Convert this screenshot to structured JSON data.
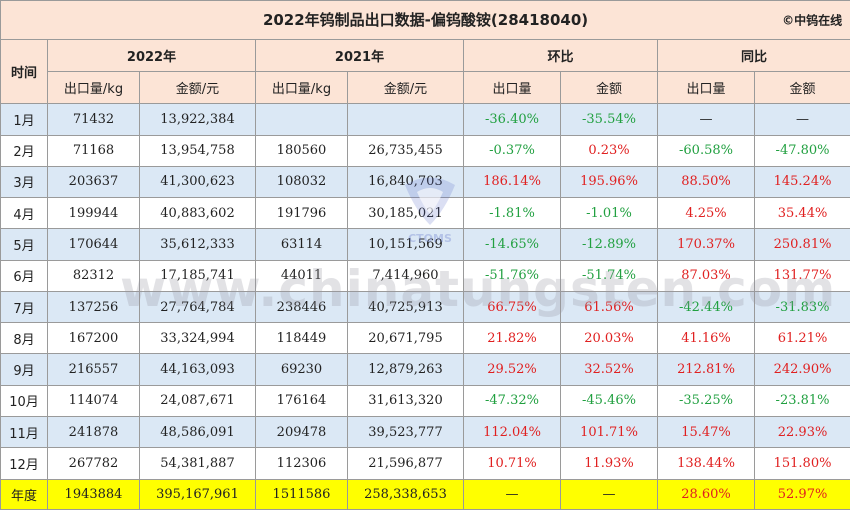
{
  "title": "2022年钨制品出口数据-偏钨酸铵(28418040)",
  "copyright": "©中钨在线",
  "watermark": "www.chinatungsten.com",
  "logo_text": "CTOMS",
  "headers": {
    "time": "时间",
    "year2022": "2022年",
    "year2021": "2021年",
    "mom": "环比",
    "yoy": "同比",
    "qty_kg": "出口量/kg",
    "amount_yuan": "金额/元",
    "qty": "出口量",
    "amount": "金额"
  },
  "rows": [
    {
      "month": "1月",
      "q22": "71432",
      "a22": "13,922,384",
      "q21": "",
      "a21": "",
      "mom_q": "-36.40%",
      "mom_a": "-35.54%",
      "yoy_q": "—",
      "yoy_a": "—"
    },
    {
      "month": "2月",
      "q22": "71168",
      "a22": "13,954,758",
      "q21": "180560",
      "a21": "26,735,455",
      "mom_q": "-0.37%",
      "mom_a": "0.23%",
      "yoy_q": "-60.58%",
      "yoy_a": "-47.80%"
    },
    {
      "month": "3月",
      "q22": "203637",
      "a22": "41,300,623",
      "q21": "108032",
      "a21": "16,840,703",
      "mom_q": "186.14%",
      "mom_a": "195.96%",
      "yoy_q": "88.50%",
      "yoy_a": "145.24%"
    },
    {
      "month": "4月",
      "q22": "199944",
      "a22": "40,883,602",
      "q21": "191796",
      "a21": "30,185,021",
      "mom_q": "-1.81%",
      "mom_a": "-1.01%",
      "yoy_q": "4.25%",
      "yoy_a": "35.44%"
    },
    {
      "month": "5月",
      "q22": "170644",
      "a22": "35,612,333",
      "q21": "63114",
      "a21": "10,151,569",
      "mom_q": "-14.65%",
      "mom_a": "-12.89%",
      "yoy_q": "170.37%",
      "yoy_a": "250.81%"
    },
    {
      "month": "6月",
      "q22": "82312",
      "a22": "17,185,741",
      "q21": "44011",
      "a21": "7,414,960",
      "mom_q": "-51.76%",
      "mom_a": "-51.74%",
      "yoy_q": "87.03%",
      "yoy_a": "131.77%"
    },
    {
      "month": "7月",
      "q22": "137256",
      "a22": "27,764,784",
      "q21": "238446",
      "a21": "40,725,913",
      "mom_q": "66.75%",
      "mom_a": "61.56%",
      "yoy_q": "-42.44%",
      "yoy_a": "-31.83%"
    },
    {
      "month": "8月",
      "q22": "167200",
      "a22": "33,324,994",
      "q21": "118449",
      "a21": "20,671,795",
      "mom_q": "21.82%",
      "mom_a": "20.03%",
      "yoy_q": "41.16%",
      "yoy_a": "61.21%"
    },
    {
      "month": "9月",
      "q22": "216557",
      "a22": "44,163,093",
      "q21": "69230",
      "a21": "12,879,263",
      "mom_q": "29.52%",
      "mom_a": "32.52%",
      "yoy_q": "212.81%",
      "yoy_a": "242.90%"
    },
    {
      "month": "10月",
      "q22": "114074",
      "a22": "24,087,671",
      "q21": "176164",
      "a21": "31,613,320",
      "mom_q": "-47.32%",
      "mom_a": "-45.46%",
      "yoy_q": "-35.25%",
      "yoy_a": "-23.81%"
    },
    {
      "month": "11月",
      "q22": "241878",
      "a22": "48,586,091",
      "q21": "209478",
      "a21": "39,523,777",
      "mom_q": "112.04%",
      "mom_a": "101.71%",
      "yoy_q": "15.47%",
      "yoy_a": "22.93%"
    },
    {
      "month": "12月",
      "q22": "267782",
      "a22": "54,381,887",
      "q21": "112306",
      "a21": "21,596,877",
      "mom_q": "10.71%",
      "mom_a": "11.93%",
      "yoy_q": "138.44%",
      "yoy_a": "151.80%"
    }
  ],
  "total": {
    "month": "年度",
    "q22": "1943884",
    "a22": "395,167,961",
    "q21": "1511586",
    "a21": "258,338,653",
    "mom_q": "—",
    "mom_a": "—",
    "yoy_q": "28.60%",
    "yoy_a": "52.97%"
  },
  "colors": {
    "header_bg": "#fce4d6",
    "stripe_bg": "#dbe8f5",
    "total_bg": "#ffff00",
    "positive": "#e02020",
    "negative": "#21a040"
  }
}
